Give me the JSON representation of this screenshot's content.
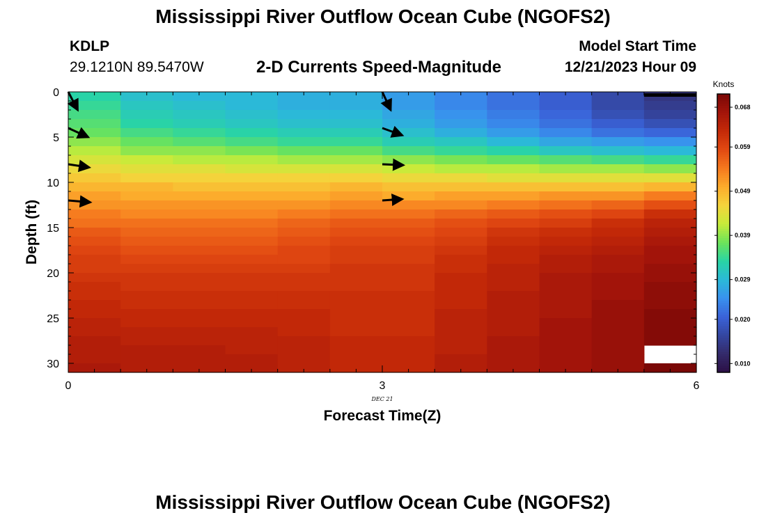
{
  "header": {
    "title": "Mississippi River Outflow Ocean Cube (NGOFS2)",
    "station": "KDLP",
    "coords": "29.1210N  89.5470W",
    "subtitle": "2-D Currents Speed-Magnitude",
    "start_label": "Model Start Time",
    "start_value": "12/21/2023 Hour 09"
  },
  "footer": {
    "title": "Mississippi River Outflow Ocean Cube (NGOFS2)"
  },
  "chart_data": {
    "type": "heatmap",
    "xlabel": "Forecast Time(Z)",
    "ylabel": "Depth (ft)",
    "x_ticks": [
      0,
      3,
      6
    ],
    "x_date_label": "DEC 21",
    "xlim": [
      0,
      6
    ],
    "y_ticks": [
      0,
      5,
      10,
      15,
      20,
      25,
      30
    ],
    "ylim": [
      0,
      31
    ],
    "y_inverted": true,
    "colorbar": {
      "title": "Knots",
      "ticks": [
        0.01,
        0.02,
        0.029,
        0.039,
        0.049,
        0.059,
        0.068
      ],
      "tick_labels": [
        "0.010",
        "0.020",
        "0.029",
        "0.039",
        "0.049",
        "0.059",
        "0.068"
      ],
      "range": [
        0.008,
        0.071
      ],
      "palette": [
        "#2b0f45",
        "#342a6a",
        "#3446a0",
        "#3a62d8",
        "#3991ee",
        "#2bb9d8",
        "#29d4a5",
        "#6ce35a",
        "#c6ec3a",
        "#f4d53c",
        "#fcac2c",
        "#f67a1e",
        "#e24a12",
        "#c52a08",
        "#a4150a",
        "#7a0806"
      ]
    },
    "time_columns": [
      0.25,
      0.75,
      1.25,
      1.75,
      2.25,
      2.75,
      3.25,
      3.75,
      4.25,
      4.75,
      5.25,
      5.75
    ],
    "depth_rows": [
      0.5,
      1.5,
      2.5,
      3.5,
      4.5,
      5.5,
      6.5,
      7.5,
      8.5,
      9.5,
      10.5,
      11.5,
      12.5,
      13.5,
      14.5,
      15.5,
      16.5,
      17.5,
      18.5,
      19.5,
      20.5,
      21.5,
      22.5,
      23.5,
      24.5,
      25.5,
      26.5,
      27.5,
      28.5,
      29.5,
      30.5
    ],
    "speed_knots": [
      [
        0.033,
        0.03,
        0.029,
        0.029,
        0.028,
        0.028,
        0.026,
        0.024,
        0.022,
        0.02,
        0.017,
        0.014
      ],
      [
        0.034,
        0.031,
        0.03,
        0.029,
        0.028,
        0.028,
        0.026,
        0.024,
        0.022,
        0.02,
        0.017,
        0.015
      ],
      [
        0.035,
        0.032,
        0.031,
        0.03,
        0.029,
        0.029,
        0.027,
        0.025,
        0.023,
        0.021,
        0.018,
        0.016
      ],
      [
        0.036,
        0.033,
        0.032,
        0.031,
        0.03,
        0.03,
        0.028,
        0.026,
        0.024,
        0.022,
        0.02,
        0.018
      ],
      [
        0.037,
        0.035,
        0.034,
        0.033,
        0.032,
        0.032,
        0.03,
        0.028,
        0.026,
        0.024,
        0.022,
        0.021
      ],
      [
        0.039,
        0.037,
        0.036,
        0.035,
        0.034,
        0.034,
        0.032,
        0.031,
        0.029,
        0.027,
        0.026,
        0.025
      ],
      [
        0.041,
        0.039,
        0.039,
        0.038,
        0.037,
        0.037,
        0.035,
        0.034,
        0.033,
        0.031,
        0.03,
        0.029
      ],
      [
        0.043,
        0.042,
        0.041,
        0.041,
        0.04,
        0.04,
        0.039,
        0.038,
        0.037,
        0.036,
        0.035,
        0.034
      ],
      [
        0.045,
        0.044,
        0.044,
        0.043,
        0.043,
        0.043,
        0.042,
        0.041,
        0.041,
        0.04,
        0.04,
        0.039
      ],
      [
        0.047,
        0.046,
        0.046,
        0.046,
        0.046,
        0.046,
        0.045,
        0.045,
        0.044,
        0.044,
        0.044,
        0.044
      ],
      [
        0.049,
        0.049,
        0.048,
        0.048,
        0.048,
        0.049,
        0.048,
        0.048,
        0.048,
        0.048,
        0.048,
        0.049
      ],
      [
        0.051,
        0.05,
        0.05,
        0.05,
        0.05,
        0.051,
        0.05,
        0.051,
        0.051,
        0.052,
        0.052,
        0.054
      ],
      [
        0.052,
        0.052,
        0.052,
        0.052,
        0.052,
        0.053,
        0.053,
        0.053,
        0.054,
        0.055,
        0.056,
        0.058
      ],
      [
        0.054,
        0.053,
        0.053,
        0.053,
        0.054,
        0.055,
        0.055,
        0.056,
        0.057,
        0.058,
        0.059,
        0.062
      ],
      [
        0.055,
        0.055,
        0.055,
        0.055,
        0.056,
        0.057,
        0.057,
        0.058,
        0.059,
        0.06,
        0.062,
        0.064
      ],
      [
        0.057,
        0.056,
        0.056,
        0.056,
        0.057,
        0.058,
        0.058,
        0.059,
        0.061,
        0.062,
        0.063,
        0.065
      ],
      [
        0.058,
        0.057,
        0.057,
        0.057,
        0.058,
        0.059,
        0.059,
        0.06,
        0.062,
        0.063,
        0.064,
        0.066
      ],
      [
        0.059,
        0.058,
        0.058,
        0.058,
        0.059,
        0.06,
        0.06,
        0.061,
        0.063,
        0.064,
        0.065,
        0.067
      ],
      [
        0.06,
        0.059,
        0.059,
        0.059,
        0.059,
        0.06,
        0.06,
        0.062,
        0.063,
        0.065,
        0.066,
        0.067
      ],
      [
        0.06,
        0.06,
        0.06,
        0.06,
        0.06,
        0.061,
        0.061,
        0.062,
        0.064,
        0.065,
        0.066,
        0.068
      ],
      [
        0.061,
        0.061,
        0.061,
        0.061,
        0.061,
        0.061,
        0.061,
        0.063,
        0.064,
        0.066,
        0.067,
        0.068
      ],
      [
        0.062,
        0.061,
        0.061,
        0.061,
        0.061,
        0.061,
        0.061,
        0.063,
        0.064,
        0.066,
        0.067,
        0.069
      ],
      [
        0.062,
        0.062,
        0.062,
        0.062,
        0.062,
        0.062,
        0.062,
        0.063,
        0.065,
        0.066,
        0.067,
        0.069
      ],
      [
        0.063,
        0.062,
        0.062,
        0.062,
        0.062,
        0.062,
        0.062,
        0.063,
        0.065,
        0.066,
        0.068,
        0.069
      ],
      [
        0.063,
        0.063,
        0.063,
        0.063,
        0.063,
        0.062,
        0.062,
        0.064,
        0.065,
        0.066,
        0.068,
        0.07
      ],
      [
        0.064,
        0.063,
        0.063,
        0.063,
        0.063,
        0.062,
        0.062,
        0.064,
        0.065,
        0.067,
        0.068,
        0.07
      ],
      [
        0.064,
        0.064,
        0.064,
        0.064,
        0.063,
        0.062,
        0.062,
        0.064,
        0.065,
        0.067,
        0.068,
        0.07
      ],
      [
        0.065,
        0.064,
        0.064,
        0.064,
        0.064,
        0.063,
        0.063,
        0.064,
        0.066,
        0.067,
        0.068,
        0.07
      ],
      [
        0.065,
        0.065,
        0.065,
        0.064,
        0.064,
        0.063,
        0.063,
        0.064,
        0.066,
        0.067,
        0.068,
        null
      ],
      [
        0.065,
        0.065,
        0.065,
        0.065,
        0.064,
        0.063,
        0.063,
        0.065,
        0.066,
        0.067,
        0.068,
        null
      ],
      [
        0.066,
        0.065,
        0.065,
        0.065,
        0.064,
        0.063,
        0.063,
        0.065,
        0.066,
        0.067,
        0.068,
        0.071
      ]
    ],
    "vectors": [
      {
        "time": 0,
        "depth": 0,
        "dx": 0.09,
        "dy": 2.0
      },
      {
        "time": 0,
        "depth": 4,
        "dx": 0.19,
        "dy": 1.0
      },
      {
        "time": 0,
        "depth": 8,
        "dx": 0.2,
        "dy": 0.35
      },
      {
        "time": 0,
        "depth": 12,
        "dx": 0.21,
        "dy": 0.2
      },
      {
        "time": 3,
        "depth": 0,
        "dx": 0.08,
        "dy": 2.0
      },
      {
        "time": 3,
        "depth": 4,
        "dx": 0.19,
        "dy": 0.8
      },
      {
        "time": 3,
        "depth": 8,
        "dx": 0.2,
        "dy": 0.1
      },
      {
        "time": 3,
        "depth": 12,
        "dx": 0.19,
        "dy": -0.15
      }
    ]
  }
}
